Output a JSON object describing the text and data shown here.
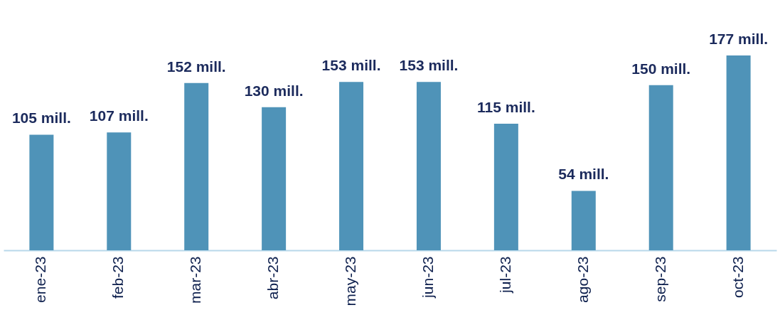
{
  "chart_data": {
    "type": "bar",
    "categories": [
      "ene-23",
      "feb-23",
      "mar-23",
      "abr-23",
      "may-23",
      "jun-23",
      "jul-23",
      "ago-23",
      "sep-23",
      "oct-23"
    ],
    "values": [
      105,
      107,
      152,
      130,
      153,
      153,
      115,
      54,
      150,
      177
    ],
    "value_labels": [
      "105 mill.",
      "107 mill.",
      "152 mill.",
      "130 mill.",
      "153 mill.",
      "153 mill.",
      "115 mill.",
      "54 mill.",
      "150 mill.",
      "177 mill."
    ],
    "color": "#4f93b8",
    "tick_labels": "x"
  }
}
